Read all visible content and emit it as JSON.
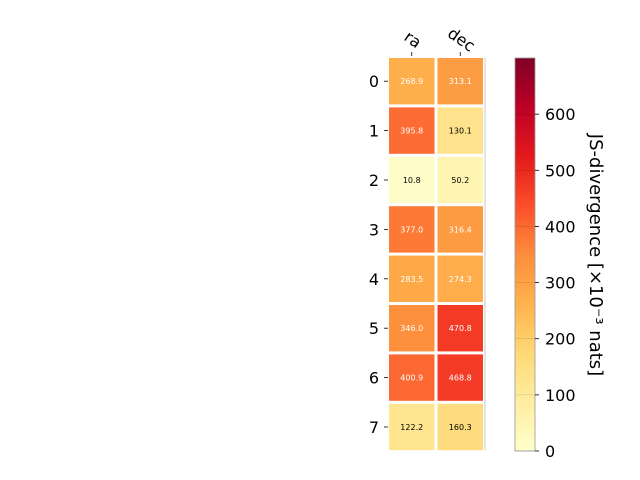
{
  "chart_data": {
    "type": "heatmap",
    "columns": [
      "ra",
      "dec"
    ],
    "rows": [
      "0",
      "1",
      "2",
      "3",
      "4",
      "5",
      "6",
      "7"
    ],
    "values": [
      [
        268.9,
        313.1
      ],
      [
        395.8,
        130.1
      ],
      [
        10.8,
        50.2
      ],
      [
        377.0,
        316.4
      ],
      [
        283.5,
        274.3
      ],
      [
        346.0,
        470.8
      ],
      [
        400.9,
        468.8
      ],
      [
        122.2,
        160.3
      ]
    ],
    "colorbar": {
      "label": "JS-divergence [×10⁻³ nats]",
      "range": [
        0,
        700
      ],
      "ticks": [
        0,
        100,
        200,
        300,
        400,
        500,
        600
      ],
      "colormap": "YlOrRd"
    },
    "grid": false
  }
}
